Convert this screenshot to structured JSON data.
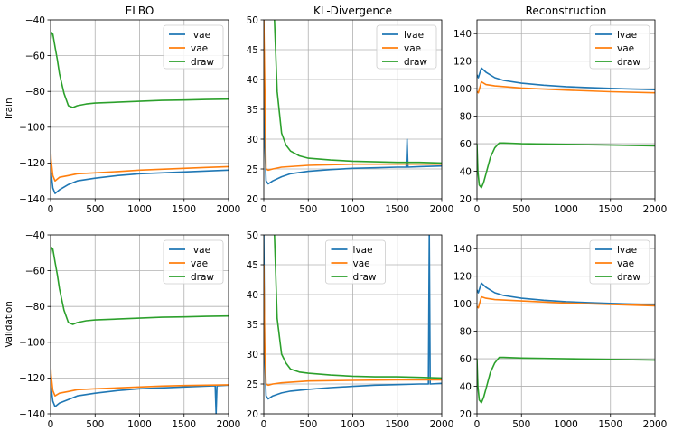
{
  "figure": {
    "columns": [
      "ELBO",
      "KL-Divergence",
      "Reconstruction"
    ],
    "rows": [
      "Train",
      "Validation"
    ]
  },
  "colors": {
    "lvae": "#1f77b4",
    "vae": "#ff7f0e",
    "draw": "#2ca02c",
    "grid": "#b0b0b0"
  },
  "chart_data": [
    {
      "type": "line",
      "title": "ELBO",
      "ylabel": "Train",
      "xlim": [
        0,
        2000
      ],
      "ylim": [
        -140,
        -40
      ],
      "xticks": [
        0,
        500,
        1000,
        1500,
        2000
      ],
      "yticks": [
        -140,
        -120,
        -100,
        -80,
        -60,
        -40
      ],
      "grid": true,
      "legend": "upper right",
      "series": [
        {
          "name": "lvae",
          "x": [
            0,
            5,
            25,
            50,
            100,
            200,
            300,
            500,
            750,
            1000,
            1250,
            1500,
            1750,
            2000
          ],
          "y": [
            -113,
            -125,
            -134,
            -137,
            -135,
            -132,
            -130,
            -128.5,
            -127,
            -126,
            -125.5,
            -125,
            -124.5,
            -124
          ]
        },
        {
          "name": "vae",
          "x": [
            0,
            5,
            25,
            50,
            100,
            200,
            300,
            500,
            750,
            1000,
            1250,
            1500,
            1750,
            2000
          ],
          "y": [
            -112,
            -118,
            -127,
            -130,
            -128,
            -127,
            -126,
            -125.5,
            -124.8,
            -124,
            -123.5,
            -123,
            -122.5,
            -122
          ]
        },
        {
          "name": "draw",
          "x": [
            0,
            10,
            25,
            50,
            75,
            100,
            150,
            200,
            250,
            300,
            400,
            500,
            750,
            1000,
            1250,
            1500,
            1750,
            2000
          ],
          "y": [
            -52,
            -47,
            -48,
            -55,
            -62,
            -70,
            -81,
            -88,
            -89,
            -88,
            -87,
            -86.5,
            -86,
            -85.5,
            -85,
            -84.8,
            -84.5,
            -84.3
          ]
        }
      ]
    },
    {
      "type": "line",
      "title": "KL-Divergence",
      "ylabel": "",
      "xlim": [
        0,
        2000
      ],
      "ylim": [
        20,
        50
      ],
      "xticks": [
        0,
        500,
        1000,
        1500,
        2000
      ],
      "yticks": [
        20,
        25,
        30,
        35,
        40,
        45,
        50
      ],
      "grid": true,
      "legend": "upper right",
      "series": [
        {
          "name": "lvae",
          "x": [
            0,
            10,
            25,
            50,
            100,
            200,
            300,
            500,
            750,
            1000,
            1250,
            1500,
            1600,
            1610,
            1620,
            1750,
            2000
          ],
          "y": [
            50,
            30,
            23,
            22.5,
            23,
            23.7,
            24.2,
            24.6,
            24.9,
            25.1,
            25.2,
            25.3,
            25.3,
            30,
            25.3,
            25.4,
            25.5
          ]
        },
        {
          "name": "vae",
          "x": [
            0,
            10,
            25,
            50,
            100,
            200,
            500,
            1000,
            1500,
            2000
          ],
          "y": [
            50,
            40,
            25,
            24.8,
            25,
            25.3,
            25.6,
            25.8,
            25.8,
            25.8
          ]
        },
        {
          "name": "draw",
          "x": [
            120,
            150,
            200,
            250,
            300,
            400,
            500,
            750,
            1000,
            1250,
            1500,
            1750,
            2000
          ],
          "y": [
            50,
            38,
            31,
            29,
            28,
            27.2,
            26.8,
            26.5,
            26.3,
            26.2,
            26.1,
            26.1,
            26
          ]
        }
      ]
    },
    {
      "type": "line",
      "title": "Reconstruction",
      "ylabel": "",
      "xlim": [
        0,
        2000
      ],
      "ylim": [
        20,
        150
      ],
      "xticks": [
        0,
        500,
        1000,
        1500,
        2000
      ],
      "yticks": [
        20,
        40,
        60,
        80,
        100,
        120,
        140
      ],
      "grid": true,
      "legend": "upper right",
      "series": [
        {
          "name": "lvae",
          "x": [
            0,
            15,
            50,
            100,
            200,
            300,
            500,
            750,
            1000,
            1250,
            1500,
            1750,
            2000
          ],
          "y": [
            110,
            108,
            115,
            112,
            108,
            106,
            104,
            102.5,
            101.5,
            100.8,
            100.2,
            99.7,
            99.3
          ]
        },
        {
          "name": "vae",
          "x": [
            0,
            15,
            50,
            100,
            200,
            500,
            1000,
            1500,
            2000
          ],
          "y": [
            98,
            97,
            105,
            103,
            102,
            100.5,
            99,
            97.8,
            97
          ]
        },
        {
          "name": "draw",
          "x": [
            0,
            10,
            25,
            50,
            75,
            100,
            150,
            200,
            250,
            300,
            500,
            1000,
            1500,
            2000
          ],
          "y": [
            60,
            40,
            30,
            28,
            32,
            38,
            50,
            57,
            60.5,
            60.5,
            60,
            59.5,
            59,
            58.5
          ]
        }
      ]
    },
    {
      "type": "line",
      "title": "",
      "ylabel": "Validation",
      "xlim": [
        0,
        2000
      ],
      "ylim": [
        -140,
        -40
      ],
      "xticks": [
        0,
        500,
        1000,
        1500,
        2000
      ],
      "yticks": [
        -140,
        -120,
        -100,
        -80,
        -60,
        -40
      ],
      "grid": true,
      "legend": "upper right",
      "series": [
        {
          "name": "lvae",
          "x": [
            0,
            5,
            25,
            50,
            100,
            200,
            300,
            500,
            750,
            1000,
            1250,
            1500,
            1750,
            1850,
            1860,
            1870,
            2000
          ],
          "y": [
            -113,
            -125,
            -133,
            -136,
            -134,
            -132,
            -130,
            -128.5,
            -127,
            -126,
            -125.5,
            -125,
            -124.5,
            -124.3,
            -140,
            -124.3,
            -124
          ]
        },
        {
          "name": "vae",
          "x": [
            0,
            5,
            25,
            50,
            100,
            200,
            300,
            500,
            750,
            1000,
            1250,
            1500,
            1750,
            2000
          ],
          "y": [
            -112,
            -118,
            -127,
            -130,
            -128.5,
            -127.5,
            -126.5,
            -126,
            -125.5,
            -125,
            -124.5,
            -124.2,
            -124,
            -123.8
          ]
        },
        {
          "name": "draw",
          "x": [
            0,
            10,
            25,
            50,
            75,
            100,
            150,
            200,
            250,
            300,
            400,
            500,
            750,
            1000,
            1250,
            1500,
            1750,
            2000
          ],
          "y": [
            -52,
            -47,
            -48,
            -55,
            -62,
            -70,
            -82,
            -89,
            -90,
            -89,
            -88,
            -87.5,
            -87,
            -86.5,
            -86,
            -85.8,
            -85.5,
            -85.3
          ]
        }
      ]
    },
    {
      "type": "line",
      "title": "",
      "ylabel": "",
      "xlim": [
        0,
        2000
      ],
      "ylim": [
        20,
        50
      ],
      "xticks": [
        0,
        500,
        1000,
        1500,
        2000
      ],
      "yticks": [
        20,
        25,
        30,
        35,
        40,
        45,
        50
      ],
      "grid": true,
      "legend": "upper center",
      "series": [
        {
          "name": "lvae",
          "x": [
            0,
            10,
            25,
            50,
            100,
            200,
            300,
            500,
            750,
            1000,
            1250,
            1500,
            1750,
            1850,
            1860,
            1870,
            2000
          ],
          "y": [
            50,
            30,
            23,
            22.5,
            23,
            23.5,
            23.8,
            24.1,
            24.4,
            24.6,
            24.8,
            24.9,
            25,
            25,
            50,
            25,
            25.1
          ]
        },
        {
          "name": "vae",
          "x": [
            0,
            10,
            25,
            50,
            100,
            200,
            500,
            1000,
            1500,
            2000
          ],
          "y": [
            45,
            32,
            25,
            24.8,
            25,
            25.2,
            25.5,
            25.6,
            25.7,
            25.7
          ]
        },
        {
          "name": "draw",
          "x": [
            120,
            150,
            200,
            250,
            300,
            400,
            500,
            750,
            1000,
            1250,
            1500,
            1750,
            2000
          ],
          "y": [
            50,
            36,
            30,
            28.5,
            27.5,
            27,
            26.8,
            26.5,
            26.3,
            26.2,
            26.2,
            26.1,
            26
          ]
        }
      ]
    },
    {
      "type": "line",
      "title": "",
      "ylabel": "",
      "xlim": [
        0,
        2000
      ],
      "ylim": [
        20,
        150
      ],
      "xticks": [
        0,
        500,
        1000,
        1500,
        2000
      ],
      "yticks": [
        20,
        40,
        60,
        80,
        100,
        120,
        140
      ],
      "grid": true,
      "legend": "upper right",
      "series": [
        {
          "name": "lvae",
          "x": [
            0,
            15,
            50,
            100,
            200,
            300,
            500,
            750,
            1000,
            1250,
            1500,
            1750,
            2000
          ],
          "y": [
            110,
            108,
            115,
            112,
            108,
            106,
            104,
            102.5,
            101.5,
            100.8,
            100.2,
            99.7,
            99.3
          ]
        },
        {
          "name": "vae",
          "x": [
            0,
            15,
            50,
            100,
            200,
            500,
            1000,
            1500,
            2000
          ],
          "y": [
            98,
            97,
            105,
            104,
            103,
            102,
            100.5,
            99.5,
            98.5
          ]
        },
        {
          "name": "draw",
          "x": [
            0,
            10,
            25,
            50,
            75,
            100,
            150,
            200,
            250,
            300,
            500,
            1000,
            1500,
            2000
          ],
          "y": [
            60,
            40,
            30,
            28,
            32,
            38,
            50,
            57,
            61,
            61,
            60.5,
            60,
            59.5,
            59
          ]
        }
      ]
    }
  ]
}
